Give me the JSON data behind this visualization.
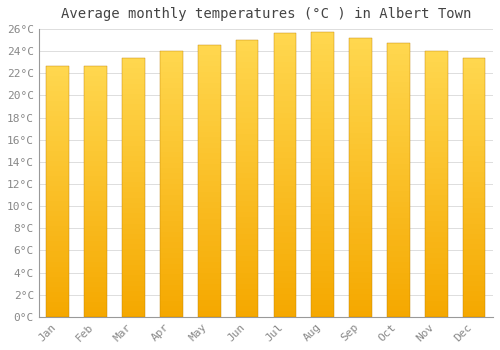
{
  "title": "Average monthly temperatures (°C ) in Albert Town",
  "months": [
    "Jan",
    "Feb",
    "Mar",
    "Apr",
    "May",
    "Jun",
    "Jul",
    "Aug",
    "Sep",
    "Oct",
    "Nov",
    "Dec"
  ],
  "temperatures": [
    22.7,
    22.7,
    23.4,
    24.0,
    24.6,
    25.0,
    25.6,
    25.7,
    25.2,
    24.7,
    24.0,
    23.4
  ],
  "bar_color_top": "#FFD040",
  "bar_color_bottom": "#F5A800",
  "ylim": [
    0,
    26
  ],
  "ytick_step": 2,
  "background_color": "#FFFFFF",
  "grid_color": "#DDDDDD",
  "title_fontsize": 10,
  "tick_fontsize": 8,
  "font_color": "#888888",
  "bar_width": 0.6
}
